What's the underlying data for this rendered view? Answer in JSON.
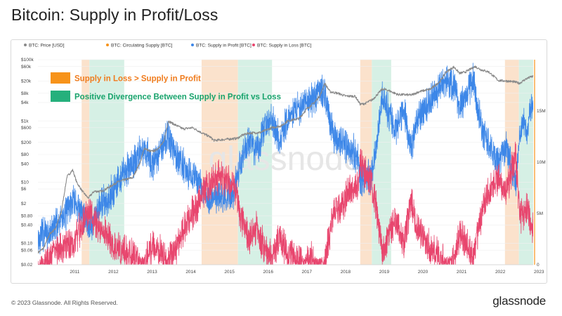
{
  "page": {
    "title": "Bitcoin: Supply in Profit/Loss",
    "footer_copyright": "© 2023 Glassnode. All Rights Reserved.",
    "footer_logo": "glassnode",
    "watermark": "glassnode"
  },
  "colors": {
    "price": "#8a8a8a",
    "circulating": "#f7931a",
    "profit": "#3d87e8",
    "loss": "#e8466e",
    "loss_band": "#fbe2cc",
    "divergence_band": "#d6f0e5",
    "annotation_loss_box": "#f7931a",
    "annotation_loss_text": "#f07c1d",
    "annotation_div_box": "#25b07c",
    "annotation_div_text": "#18a36c"
  },
  "chart_data": {
    "type": "line",
    "title": "Bitcoin: Supply in Profit/Loss",
    "legend": [
      {
        "name": "BTC: Price [USD]",
        "color": "#8a8a8a"
      },
      {
        "name": "BTC: Circulating Supply [BTC]",
        "color": "#f7931a"
      },
      {
        "name": "BTC: Supply in Profit [BTC]",
        "color": "#3d87e8"
      },
      {
        "name": "BTC: Supply in Loss [BTC]",
        "color": "#e8466e"
      }
    ],
    "legend_placement": "top-left",
    "annotations": [
      {
        "label": "Supply in Loss > Supply in Profit",
        "color": "#f7931a"
      },
      {
        "label": "Positive Divergence Between Supply in Profit vs Loss",
        "color": "#25b07c"
      }
    ],
    "x_ticks": [
      "2011",
      "2012",
      "2013",
      "2014",
      "2015",
      "2016",
      "2017",
      "2018",
      "2019",
      "2020",
      "2021",
      "2022",
      "2023"
    ],
    "x_range": [
      2010.55,
      2023.35
    ],
    "y_left_scale": "log",
    "y_left_range": [
      0.02,
      100000
    ],
    "y_left_ticks": [
      {
        "v": 100000,
        "label": "$100k"
      },
      {
        "v": 60000,
        "label": "$60k"
      },
      {
        "v": 20000,
        "label": "$20k"
      },
      {
        "v": 8000,
        "label": "$8k"
      },
      {
        "v": 4000,
        "label": "$4k"
      },
      {
        "v": 1000,
        "label": "$1k"
      },
      {
        "v": 600,
        "label": "$600"
      },
      {
        "v": 200,
        "label": "$200"
      },
      {
        "v": 80,
        "label": "$80"
      },
      {
        "v": 40,
        "label": "$40"
      },
      {
        "v": 10,
        "label": "$10"
      },
      {
        "v": 6,
        "label": "$6"
      },
      {
        "v": 2,
        "label": "$2"
      },
      {
        "v": 0.8,
        "label": "$0.80"
      },
      {
        "v": 0.4,
        "label": "$0.40"
      },
      {
        "v": 0.1,
        "label": "$0.10"
      },
      {
        "v": 0.06,
        "label": "$0.06"
      },
      {
        "v": 0.02,
        "label": "$0.02"
      }
    ],
    "y_right_range": [
      0,
      20000000
    ],
    "y_right_ticks": [
      {
        "v": 15000000,
        "label": "15M"
      },
      {
        "v": 10000000,
        "label": "10M"
      },
      {
        "v": 5000000,
        "label": "5M"
      },
      {
        "v": 0,
        "label": "0"
      }
    ],
    "shaded_periods": [
      {
        "kind": "loss",
        "from": 2011.68,
        "to": 2011.88
      },
      {
        "kind": "divergence",
        "from": 2011.88,
        "to": 2012.78
      },
      {
        "kind": "loss",
        "from": 2014.78,
        "to": 2015.72
      },
      {
        "kind": "divergence",
        "from": 2015.72,
        "to": 2016.6
      },
      {
        "kind": "loss",
        "from": 2018.88,
        "to": 2019.18
      },
      {
        "kind": "divergence",
        "from": 2019.18,
        "to": 2019.68
      },
      {
        "kind": "loss",
        "from": 2022.62,
        "to": 2022.98
      },
      {
        "kind": "divergence",
        "from": 2022.98,
        "to": 2023.35
      }
    ],
    "series": [
      {
        "name": "BTC: Price [USD]",
        "axis": "left",
        "x": [
          2010.55,
          2010.7,
          2010.85,
          2011.0,
          2011.15,
          2011.3,
          2011.45,
          2011.55,
          2011.7,
          2011.85,
          2012.0,
          2012.2,
          2012.4,
          2012.6,
          2012.8,
          2013.0,
          2013.2,
          2013.3,
          2013.45,
          2013.6,
          2013.8,
          2013.92,
          2014.05,
          2014.3,
          2014.55,
          2014.8,
          2015.0,
          2015.1,
          2015.4,
          2015.7,
          2015.85,
          2016.0,
          2016.3,
          2016.6,
          2016.85,
          2017.0,
          2017.3,
          2017.5,
          2017.7,
          2017.85,
          2017.96,
          2018.1,
          2018.3,
          2018.5,
          2018.75,
          2018.88,
          2019.0,
          2019.2,
          2019.45,
          2019.6,
          2019.85,
          2020.0,
          2020.2,
          2020.4,
          2020.7,
          2020.95,
          2021.1,
          2021.3,
          2021.45,
          2021.6,
          2021.85,
          2022.0,
          2022.2,
          2022.45,
          2022.7,
          2022.85,
          2023.0,
          2023.15,
          2023.3
        ],
        "values": [
          0.05,
          0.07,
          0.2,
          0.3,
          1,
          15,
          25,
          10,
          5,
          3,
          5,
          5,
          7,
          10,
          12,
          14,
          47,
          130,
          100,
          110,
          200,
          1000,
          800,
          550,
          600,
          400,
          300,
          230,
          250,
          270,
          350,
          400,
          420,
          600,
          700,
          1000,
          1200,
          2500,
          4000,
          7000,
          17000,
          9000,
          8000,
          6500,
          6400,
          3500,
          3700,
          5000,
          11000,
          10000,
          7300,
          7200,
          7000,
          9000,
          11000,
          20000,
          40000,
          58000,
          36000,
          40000,
          60000,
          47000,
          40000,
          21000,
          20000,
          19000,
          17000,
          23000,
          28000
        ]
      },
      {
        "name": "BTC: Supply in Profit [BTC]",
        "axis": "right",
        "x": [
          2010.55,
          2010.7,
          2010.85,
          2011.0,
          2011.2,
          2011.4,
          2011.5,
          2011.7,
          2011.9,
          2012.1,
          2012.3,
          2012.5,
          2012.7,
          2012.9,
          2013.1,
          2013.3,
          2013.5,
          2013.7,
          2013.9,
          2014.05,
          2014.2,
          2014.4,
          2014.6,
          2014.8,
          2015.0,
          2015.2,
          2015.4,
          2015.6,
          2015.8,
          2016.0,
          2016.2,
          2016.4,
          2016.6,
          2016.8,
          2017.0,
          2017.2,
          2017.4,
          2017.6,
          2017.8,
          2017.95,
          2018.05,
          2018.2,
          2018.4,
          2018.6,
          2018.8,
          2018.9,
          2019.0,
          2019.15,
          2019.3,
          2019.45,
          2019.6,
          2019.8,
          2020.0,
          2020.2,
          2020.3,
          2020.5,
          2020.7,
          2020.9,
          2021.1,
          2021.3,
          2021.45,
          2021.6,
          2021.8,
          2021.9,
          2022.05,
          2022.2,
          2022.35,
          2022.5,
          2022.65,
          2022.8,
          2022.9,
          2023.0,
          2023.1,
          2023.2,
          2023.3
        ],
        "values": [
          2.5,
          3.0,
          3.0,
          3.8,
          4.7,
          5.8,
          6.3,
          4.8,
          3.7,
          5.3,
          6.2,
          7.3,
          8.8,
          9.4,
          10.3,
          11.4,
          9.9,
          10.8,
          12.6,
          11.2,
          10.3,
          9.0,
          8.6,
          7.7,
          6.4,
          6.5,
          6.6,
          6.9,
          10.0,
          12.4,
          11.0,
          13.4,
          14.3,
          12.2,
          14.2,
          15.0,
          15.7,
          16.0,
          16.7,
          16.7,
          14.9,
          12.2,
          11.9,
          11.6,
          10.6,
          7.8,
          8.6,
          8.4,
          11.5,
          16.6,
          14.9,
          13.2,
          15.2,
          11.4,
          13.5,
          15.0,
          16.3,
          17.2,
          17.8,
          17.5,
          15.4,
          16.3,
          18.0,
          15.5,
          13.0,
          11.5,
          10.5,
          10.2,
          11.8,
          9.2,
          7.8,
          12.4,
          14.2,
          12.8,
          15.5
        ]
      },
      {
        "name": "BTC: Supply in Loss [BTC]",
        "axis": "right",
        "x": [
          2010.55,
          2010.7,
          2010.85,
          2011.0,
          2011.2,
          2011.4,
          2011.5,
          2011.7,
          2011.9,
          2012.1,
          2012.3,
          2012.5,
          2012.7,
          2012.9,
          2013.1,
          2013.3,
          2013.5,
          2013.7,
          2013.9,
          2014.05,
          2014.2,
          2014.4,
          2014.6,
          2014.8,
          2015.0,
          2015.2,
          2015.4,
          2015.6,
          2015.8,
          2016.0,
          2016.2,
          2016.4,
          2016.6,
          2016.8,
          2017.0,
          2017.2,
          2017.4,
          2017.6,
          2017.8,
          2017.95,
          2018.05,
          2018.2,
          2018.4,
          2018.6,
          2018.8,
          2018.9,
          2019.0,
          2019.15,
          2019.3,
          2019.45,
          2019.6,
          2019.8,
          2020.0,
          2020.2,
          2020.3,
          2020.5,
          2020.7,
          2020.9,
          2021.1,
          2021.3,
          2021.45,
          2021.6,
          2021.8,
          2021.9,
          2022.05,
          2022.2,
          2022.35,
          2022.5,
          2022.65,
          2022.8,
          2022.9,
          2023.0,
          2023.1,
          2023.2,
          2023.3
        ],
        "values": [
          0,
          0.3,
          0.8,
          1.5,
          2.0,
          1.8,
          2.5,
          4.0,
          5.2,
          3.6,
          3.1,
          2.0,
          1.2,
          1.0,
          0.5,
          0.2,
          1.8,
          1.2,
          0.3,
          1.0,
          2.5,
          4.3,
          5.3,
          7.0,
          8.1,
          8.6,
          8.3,
          7.9,
          4.7,
          2.2,
          3.8,
          1.5,
          0.9,
          2.5,
          1.2,
          0.8,
          0.3,
          0.5,
          0.2,
          0.1,
          2.1,
          5.3,
          5.5,
          7.1,
          7.4,
          10.3,
          9.0,
          8.1,
          5.7,
          1.0,
          2.6,
          4.5,
          2.2,
          6.2,
          4.3,
          2.8,
          1.5,
          0.7,
          0.2,
          0.5,
          2.9,
          2.2,
          0.5,
          3.0,
          5.5,
          7.0,
          8.0,
          8.4,
          6.8,
          9.3,
          10.4,
          5.0,
          4.4,
          5.7,
          3.5
        ]
      }
    ]
  }
}
